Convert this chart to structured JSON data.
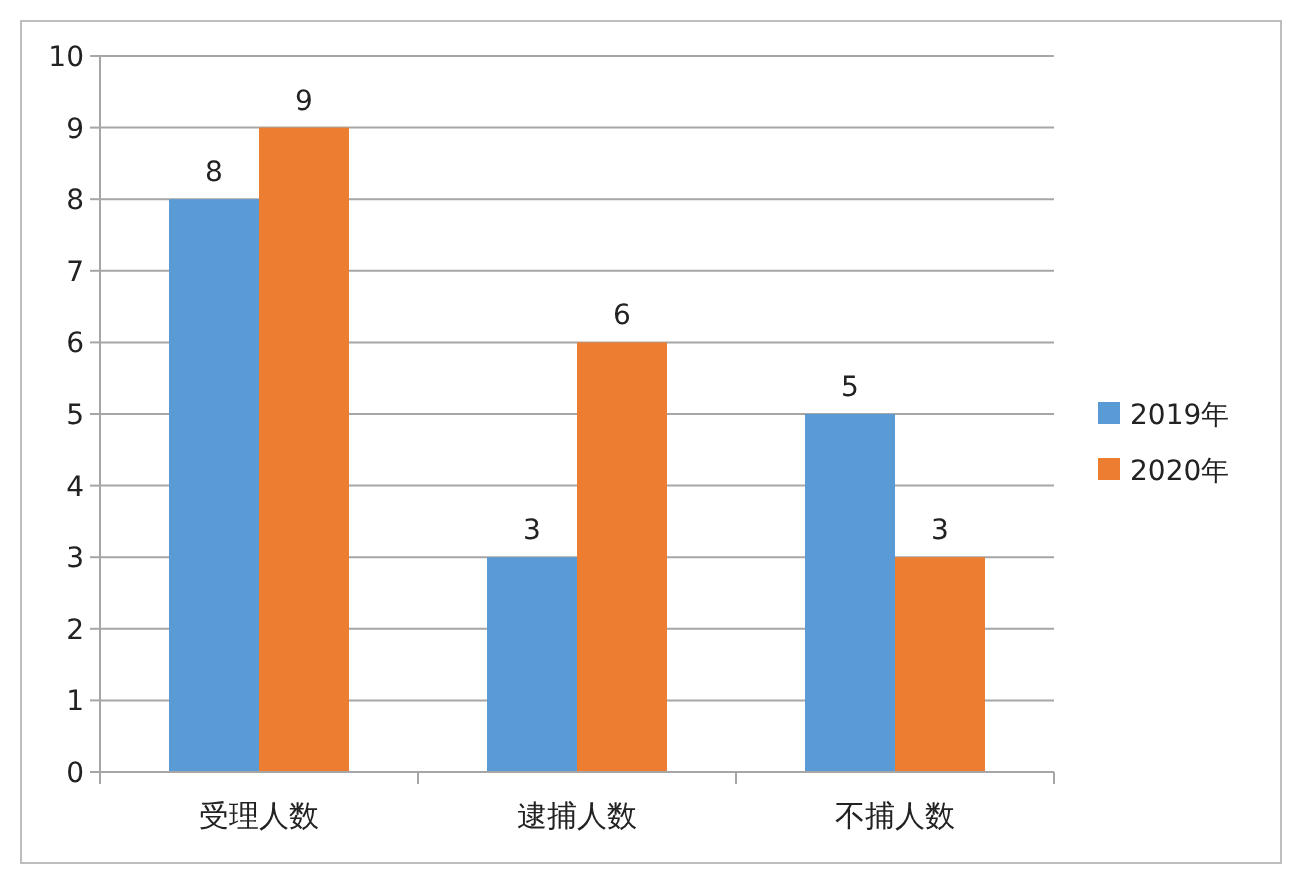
{
  "chart_data": {
    "type": "bar",
    "categories": [
      "受理人数",
      "逮捕人数",
      "不捕人数"
    ],
    "series": [
      {
        "name": "2019年",
        "color": "#5b9bd5",
        "values": [
          8,
          3,
          5
        ]
      },
      {
        "name": "2020年",
        "color": "#ed7d31",
        "values": [
          9,
          6,
          3
        ]
      }
    ],
    "ylim": [
      0,
      10
    ],
    "yticks": [
      0,
      1,
      2,
      3,
      4,
      5,
      6,
      7,
      8,
      9,
      10
    ],
    "grid": "y",
    "legend": "right",
    "data_labels": true
  }
}
